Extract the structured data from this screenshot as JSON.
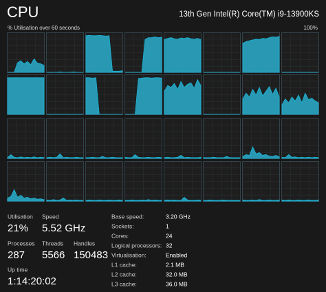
{
  "header": {
    "title": "CPU",
    "processor": "13th Gen Intel(R) Core(TM) i9-13900KS"
  },
  "graph": {
    "label": "% Utilisation over 60 seconds",
    "max_label": "100%",
    "ylim": [
      0,
      100
    ],
    "color": "#2aa5c2",
    "line_color": "#17b4d6",
    "cores": [
      [
        0,
        0,
        0,
        25,
        30,
        22,
        28,
        20,
        35,
        24,
        22,
        18
      ],
      [
        0,
        0,
        0,
        0,
        1,
        0,
        0,
        0,
        1,
        0,
        0,
        0
      ],
      [
        95,
        96,
        95,
        95,
        96,
        95,
        94,
        95,
        3,
        3,
        3,
        4
      ],
      [
        0,
        0,
        0,
        0,
        0,
        0,
        85,
        90,
        90,
        92,
        90,
        91
      ],
      [
        85,
        88,
        90,
        87,
        86,
        89,
        88,
        90,
        87,
        86,
        88,
        85
      ],
      [
        0,
        0,
        0,
        0,
        0,
        0,
        0,
        0,
        0,
        0,
        0,
        0
      ],
      [
        75,
        80,
        82,
        84,
        86,
        85,
        88,
        87,
        90,
        92,
        91,
        93
      ],
      [
        0,
        0,
        0,
        0,
        0,
        0,
        0,
        0,
        0,
        0,
        0,
        0
      ],
      [
        95,
        95,
        95,
        95,
        95,
        95,
        95,
        95,
        95,
        95,
        95,
        95
      ],
      [
        0,
        0,
        0,
        0,
        0,
        0,
        0,
        0,
        0,
        0,
        0,
        0
      ],
      [
        95,
        95,
        94,
        95,
        0,
        0,
        0,
        0,
        0,
        0,
        0,
        0
      ],
      [
        0,
        0,
        0,
        0,
        93,
        94,
        95,
        95,
        94,
        95,
        95,
        94
      ],
      [
        60,
        75,
        70,
        80,
        65,
        85,
        70,
        78,
        82,
        68,
        90,
        75
      ],
      [
        0,
        0,
        0,
        0,
        0,
        0,
        0,
        0,
        0,
        0,
        0,
        0
      ],
      [
        40,
        55,
        45,
        65,
        50,
        70,
        48,
        60,
        72,
        52,
        68,
        45
      ],
      [
        25,
        40,
        30,
        45,
        35,
        50,
        30,
        55,
        38,
        42,
        35,
        30
      ],
      [
        2,
        10,
        3,
        2,
        4,
        2,
        3,
        2,
        4,
        2,
        3,
        2
      ],
      [
        2,
        3,
        2,
        3,
        12,
        2,
        3,
        2,
        2,
        3,
        2,
        2
      ],
      [
        2,
        2,
        3,
        2,
        2,
        5,
        2,
        2,
        3,
        2,
        2,
        2
      ],
      [
        3,
        2,
        2,
        10,
        3,
        2,
        2,
        3,
        2,
        2,
        3,
        2
      ],
      [
        2,
        3,
        2,
        2,
        3,
        8,
        2,
        3,
        2,
        2,
        2,
        3
      ],
      [
        2,
        2,
        2,
        3,
        2,
        2,
        2,
        5,
        2,
        2,
        2,
        2
      ],
      [
        5,
        10,
        8,
        30,
        12,
        15,
        8,
        10,
        6,
        5,
        8,
        4
      ],
      [
        3,
        2,
        10,
        3,
        4,
        2,
        3,
        2,
        3,
        2,
        3,
        2
      ],
      [
        8,
        12,
        30,
        10,
        15,
        8,
        10,
        6,
        8,
        5,
        6,
        4
      ],
      [
        3,
        2,
        4,
        2,
        3,
        8,
        2,
        3,
        2,
        3,
        2,
        2
      ],
      [
        2,
        3,
        2,
        2,
        3,
        2,
        2,
        3,
        2,
        2,
        3,
        2
      ],
      [
        2,
        2,
        3,
        2,
        2,
        3,
        2,
        4,
        2,
        3,
        2,
        2
      ],
      [
        2,
        3,
        2,
        3,
        2,
        2,
        10,
        3,
        2,
        2,
        3,
        2
      ],
      [
        2,
        2,
        3,
        2,
        2,
        2,
        3,
        2,
        2,
        2,
        2,
        2
      ],
      [
        3,
        2,
        2,
        3,
        2,
        4,
        2,
        2,
        3,
        2,
        2,
        3
      ],
      [
        3,
        2,
        3,
        2,
        2,
        3,
        2,
        2,
        3,
        2,
        2,
        3
      ]
    ]
  },
  "stats": [
    {
      "label": "Utilisation",
      "value": "21%"
    },
    {
      "label": "Speed",
      "value": "5.52 GHz"
    },
    {
      "label": "Processes",
      "value": "287"
    },
    {
      "label": "Threads",
      "value": "5566"
    },
    {
      "label": "Handles",
      "value": "150483"
    },
    {
      "label": "Up time",
      "value": "1:14:20:02"
    }
  ],
  "specs": [
    {
      "label": "Base speed:",
      "value": "3.20 GHz"
    },
    {
      "label": "Sockets:",
      "value": "1"
    },
    {
      "label": "Cores:",
      "value": "24"
    },
    {
      "label": "Logical processors:",
      "value": "32"
    },
    {
      "label": "Virtualisation:",
      "value": "Enabled"
    },
    {
      "label": "L1 cache:",
      "value": "2.1 MB"
    },
    {
      "label": "L2 cache:",
      "value": "32.0 MB"
    },
    {
      "label": "L3 cache:",
      "value": "36.0 MB"
    }
  ]
}
